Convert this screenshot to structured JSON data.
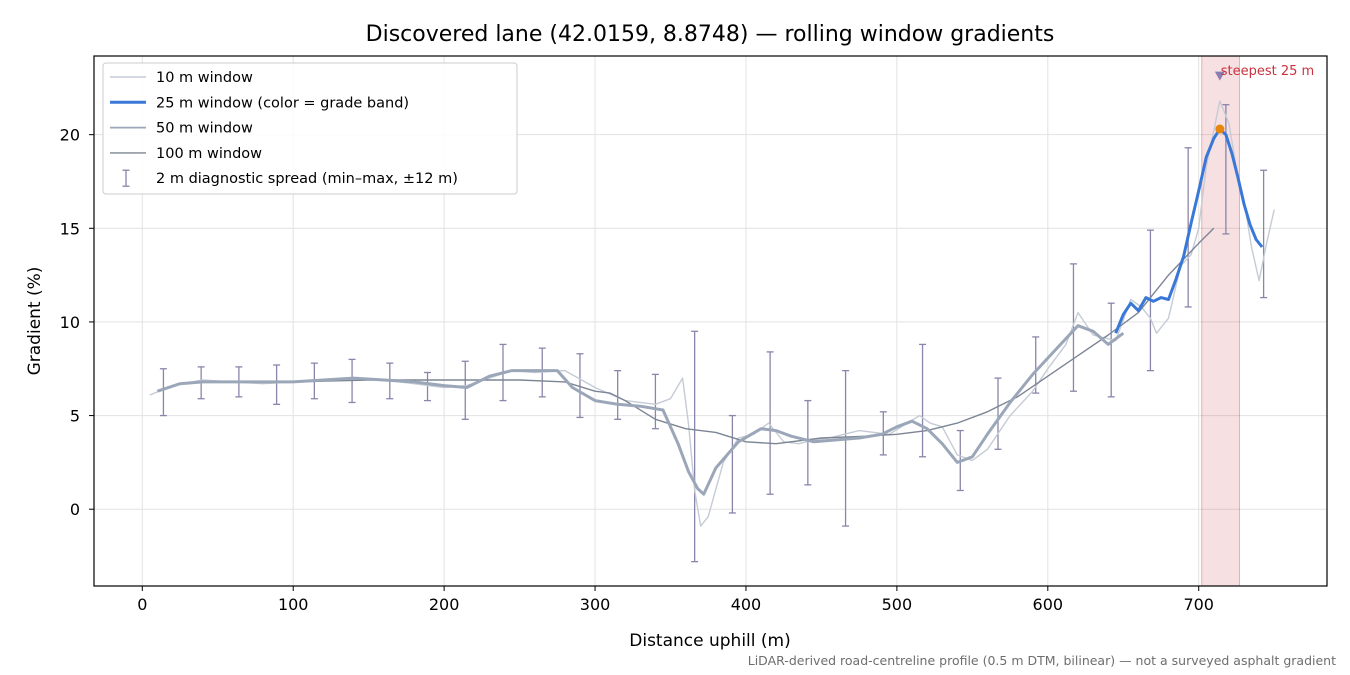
{
  "chart_data": {
    "type": "line",
    "title": "Discovered lane (42.0159, 8.8748) — rolling window gradients",
    "xlabel": "Distance uphill (m)",
    "ylabel": "Gradient (%)",
    "xlim": [
      -32,
      785
    ],
    "ylim": [
      -4.1,
      24.2
    ],
    "xticks": [
      0,
      100,
      200,
      300,
      400,
      500,
      600,
      700
    ],
    "yticks": [
      0,
      5,
      10,
      15,
      20
    ],
    "grid": true,
    "legend_position": "upper-left",
    "footnote": "LiDAR-derived road-centreline profile (0.5 m DTM, bilinear) — not a surveyed asphalt gradient",
    "steepest": {
      "label": "steepest 25 m",
      "x_range": [
        702,
        727
      ],
      "peak_x": 714,
      "peak_y": 20.3,
      "marker_y": 23.1,
      "color": "#c8323c"
    },
    "series": [
      {
        "name": "10 m window",
        "color": "#c5cbd5",
        "x": [
          5,
          20,
          40,
          60,
          80,
          100,
          120,
          140,
          160,
          180,
          200,
          215,
          230,
          245,
          260,
          280,
          300,
          320,
          340,
          350,
          358,
          362,
          366,
          370,
          375,
          385,
          395,
          405,
          415,
          420,
          425,
          435,
          445,
          455,
          465,
          475,
          485,
          495,
          505,
          515,
          522,
          530,
          540,
          550,
          560,
          575,
          590,
          600,
          612,
          620,
          630,
          645,
          655,
          662,
          668,
          672,
          680,
          688,
          695,
          700,
          705,
          710,
          714,
          720,
          725,
          730,
          735,
          740,
          745,
          750
        ],
        "values": [
          6.1,
          6.6,
          6.9,
          6.8,
          6.7,
          6.8,
          6.9,
          7.0,
          6.9,
          6.7,
          6.5,
          6.6,
          7.0,
          7.4,
          7.3,
          7.4,
          6.5,
          5.8,
          5.6,
          5.9,
          7.0,
          4.5,
          1.0,
          -0.9,
          -0.4,
          2.5,
          3.8,
          4.0,
          4.6,
          4.1,
          3.6,
          3.5,
          3.7,
          3.8,
          4.0,
          4.2,
          4.1,
          4.0,
          4.5,
          5.0,
          4.6,
          4.4,
          2.9,
          2.6,
          3.2,
          5.0,
          6.3,
          7.5,
          8.8,
          10.5,
          9.3,
          9.0,
          11.2,
          10.8,
          10.2,
          9.4,
          10.2,
          13.0,
          13.6,
          15.0,
          18.3,
          20.2,
          21.8,
          20.6,
          18.2,
          16.5,
          14.0,
          12.2,
          14.2,
          16.0
        ]
      },
      {
        "name": "25 m window (color = grade band)",
        "color": "#3a78d8",
        "x": [
          645,
          650,
          655,
          660,
          665,
          670,
          675,
          680,
          685,
          690,
          695,
          700,
          705,
          710,
          714,
          718,
          722,
          726,
          730,
          734,
          738,
          742
        ],
        "values": [
          9.4,
          10.4,
          11.0,
          10.6,
          11.3,
          11.1,
          11.3,
          11.2,
          12.3,
          13.5,
          15.3,
          17.0,
          18.8,
          19.8,
          20.3,
          20.0,
          19.0,
          17.7,
          16.3,
          15.2,
          14.4,
          14.0
        ]
      },
      {
        "name": "50 m window",
        "color": "#9ba7b8",
        "x": [
          10,
          25,
          40,
          60,
          80,
          100,
          120,
          140,
          160,
          180,
          200,
          215,
          230,
          245,
          260,
          275,
          285,
          300,
          315,
          330,
          345,
          355,
          362,
          368,
          372,
          380,
          395,
          410,
          420,
          430,
          445,
          460,
          475,
          490,
          500,
          510,
          520,
          530,
          540,
          550,
          560,
          575,
          590,
          605,
          620,
          630,
          640,
          650
        ],
        "values": [
          6.3,
          6.7,
          6.8,
          6.8,
          6.8,
          6.8,
          6.9,
          7.0,
          6.9,
          6.8,
          6.6,
          6.5,
          7.1,
          7.4,
          7.4,
          7.4,
          6.5,
          5.8,
          5.6,
          5.5,
          5.3,
          3.5,
          2.0,
          1.1,
          0.8,
          2.2,
          3.6,
          4.3,
          4.2,
          3.9,
          3.6,
          3.7,
          3.8,
          4.0,
          4.4,
          4.7,
          4.3,
          3.5,
          2.5,
          2.8,
          4.0,
          5.7,
          7.2,
          8.5,
          9.8,
          9.5,
          8.8,
          9.4
        ]
      },
      {
        "name": "100 m window",
        "color": "#7c8595",
        "x": [
          50,
          100,
          150,
          200,
          250,
          280,
          300,
          310,
          320,
          340,
          360,
          380,
          400,
          420,
          450,
          480,
          500,
          520,
          540,
          560,
          580,
          600,
          620,
          640,
          660,
          680,
          700,
          710
        ],
        "values": [
          6.8,
          6.8,
          6.9,
          6.9,
          6.9,
          6.8,
          6.3,
          6.2,
          5.8,
          4.8,
          4.3,
          4.1,
          3.6,
          3.5,
          3.8,
          3.9,
          4.0,
          4.2,
          4.6,
          5.2,
          6.0,
          7.1,
          8.2,
          9.3,
          10.5,
          12.5,
          14.2,
          15.0
        ]
      },
      {
        "name": "2 m diagnostic spread (min–max, ±12 m)",
        "color": "#8a85aa",
        "x": [
          14,
          39,
          64,
          89,
          114,
          139,
          164,
          189,
          214,
          239,
          265,
          290,
          315,
          340,
          366,
          391,
          416,
          441,
          466,
          491,
          517,
          542,
          567,
          592,
          617,
          642,
          668,
          693,
          718,
          743
        ],
        "low": [
          5.0,
          5.9,
          6.0,
          5.6,
          5.9,
          5.7,
          5.9,
          5.8,
          4.8,
          5.8,
          6.0,
          4.9,
          4.8,
          4.3,
          -2.8,
          -0.2,
          0.8,
          1.3,
          -0.9,
          2.9,
          2.8,
          1.0,
          3.2,
          6.2,
          6.3,
          6.0,
          7.4,
          10.8,
          14.7,
          11.3
        ],
        "high": [
          7.5,
          7.6,
          7.6,
          7.7,
          7.8,
          8.0,
          7.8,
          7.3,
          7.9,
          8.8,
          8.6,
          8.3,
          7.4,
          7.2,
          9.5,
          5.0,
          8.4,
          5.8,
          7.4,
          5.2,
          8.8,
          4.2,
          7.0,
          9.2,
          13.1,
          11.0,
          14.9,
          19.3,
          21.6,
          18.1
        ]
      }
    ]
  }
}
